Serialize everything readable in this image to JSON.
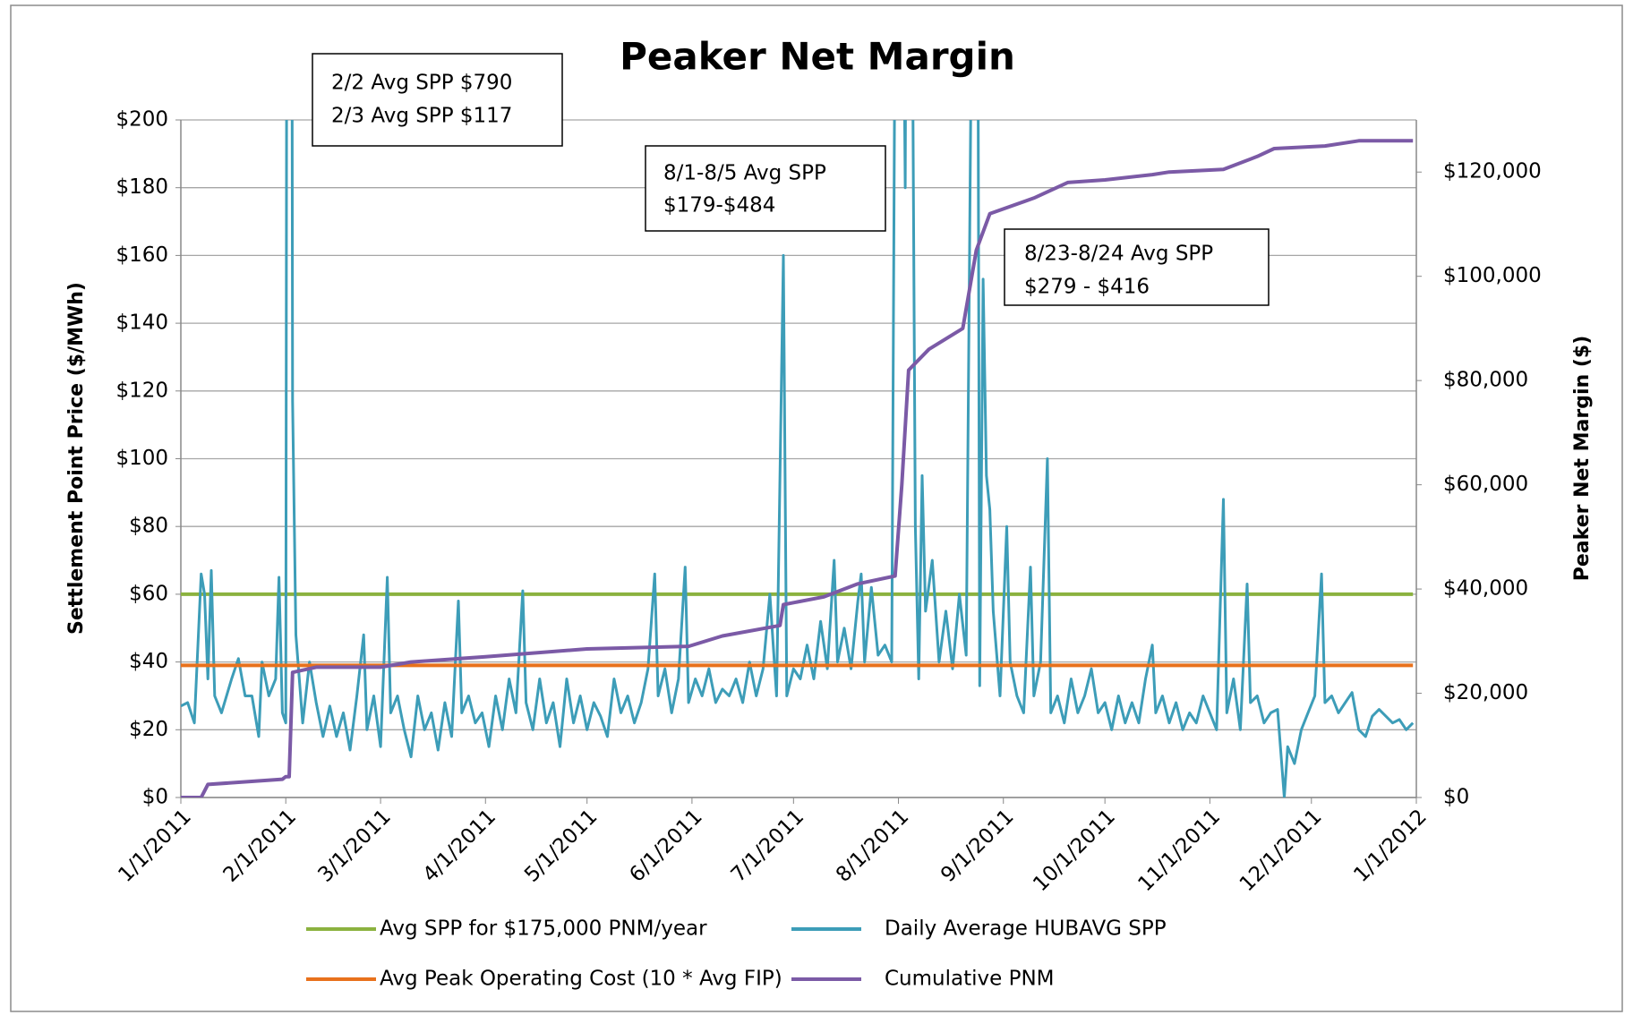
{
  "chart_data": {
    "type": "line",
    "title": "Peaker Net Margin",
    "ylabel": "Settlement Point Price ($/MWh)",
    "y2label": "Peaker Net Margin  ($)",
    "xlim": [
      "1/1/2011",
      "1/1/2012"
    ],
    "xticks": [
      "1/1/2011",
      "2/1/2011",
      "3/1/2011",
      "4/1/2011",
      "5/1/2011",
      "6/1/2011",
      "7/1/2011",
      "8/1/2011",
      "9/1/2011",
      "10/1/2011",
      "11/1/2011",
      "12/1/2011",
      "1/1/2012"
    ],
    "ylim": [
      0,
      200
    ],
    "yticks": [
      {
        "value": 0,
        "label": "$0"
      },
      {
        "value": 20,
        "label": "$20"
      },
      {
        "value": 40,
        "label": "$40"
      },
      {
        "value": 60,
        "label": "$60"
      },
      {
        "value": 80,
        "label": "$80"
      },
      {
        "value": 100,
        "label": "$100"
      },
      {
        "value": 120,
        "label": "$120"
      },
      {
        "value": 140,
        "label": "$140"
      },
      {
        "value": 160,
        "label": "$160"
      },
      {
        "value": 180,
        "label": "$180"
      },
      {
        "value": 200,
        "label": "$200"
      }
    ],
    "y2lim": [
      0,
      130000
    ],
    "y2ticks": [
      {
        "value": 0,
        "label": "$0"
      },
      {
        "value": 20000,
        "label": "$20,000"
      },
      {
        "value": 40000,
        "label": "$40,000"
      },
      {
        "value": 60000,
        "label": "$60,000"
      },
      {
        "value": 80000,
        "label": "$80,000"
      },
      {
        "value": 100000,
        "label": "$100,000"
      },
      {
        "value": 120000,
        "label": "$120,000"
      }
    ],
    "grid": true,
    "legend": "bottom",
    "annotations": [
      {
        "lines": [
          "2/2 Avg SPP $790",
          "2/3 Avg SPP $117"
        ]
      },
      {
        "lines": [
          "8/1-8/5 Avg SPP",
          "$179-$484"
        ]
      },
      {
        "lines": [
          "8/23-8/24 Avg SPP",
          "$279 - $416"
        ]
      }
    ],
    "series": [
      {
        "name": "Avg SPP for $175,000 PNM/year",
        "color": "#8bb23f",
        "x": [
          "1/1/2011",
          "12/31/2011"
        ],
        "values": [
          60,
          60
        ]
      },
      {
        "name": "Daily Average HUBAVG  SPP",
        "color": "#3d9db8",
        "x": [
          "1/1/2011",
          "1/3/2011",
          "1/5/2011",
          "1/7/2011",
          "1/8/2011",
          "1/9/2011",
          "1/10/2011",
          "1/11/2011",
          "1/13/2011",
          "1/16/2011",
          "1/18/2011",
          "1/20/2011",
          "1/22/2011",
          "1/24/2011",
          "1/25/2011",
          "1/27/2011",
          "1/29/2011",
          "1/30/2011",
          "1/31/2011",
          "2/1/2011",
          "2/2/2011",
          "2/3/2011",
          "2/4/2011",
          "2/6/2011",
          "2/8/2011",
          "2/10/2011",
          "2/12/2011",
          "2/14/2011",
          "2/16/2011",
          "2/18/2011",
          "2/20/2011",
          "2/22/2011",
          "2/24/2011",
          "2/25/2011",
          "2/27/2011",
          "3/1/2011",
          "3/3/2011",
          "3/4/2011",
          "3/6/2011",
          "3/8/2011",
          "3/10/2011",
          "3/12/2011",
          "3/14/2011",
          "3/16/2011",
          "3/18/2011",
          "3/20/2011",
          "3/22/2011",
          "3/24/2011",
          "3/25/2011",
          "3/27/2011",
          "3/29/2011",
          "3/31/2011",
          "4/2/2011",
          "4/4/2011",
          "4/6/2011",
          "4/8/2011",
          "4/10/2011",
          "4/12/2011",
          "4/13/2011",
          "4/15/2011",
          "4/17/2011",
          "4/19/2011",
          "4/21/2011",
          "4/23/2011",
          "4/25/2011",
          "4/27/2011",
          "4/29/2011",
          "5/1/2011",
          "5/3/2011",
          "5/5/2011",
          "5/7/2011",
          "5/9/2011",
          "5/11/2011",
          "5/13/2011",
          "5/15/2011",
          "5/17/2011",
          "5/19/2011",
          "5/21/2011",
          "5/22/2011",
          "5/24/2011",
          "5/26/2011",
          "5/28/2011",
          "5/30/2011",
          "5/31/2011",
          "6/2/2011",
          "6/4/2011",
          "6/6/2011",
          "6/8/2011",
          "6/10/2011",
          "6/12/2011",
          "6/14/2011",
          "6/16/2011",
          "6/18/2011",
          "6/20/2011",
          "6/22/2011",
          "6/24/2011",
          "6/26/2011",
          "6/28/2011",
          "6/29/2011",
          "7/1/2011",
          "7/3/2011",
          "7/5/2011",
          "7/7/2011",
          "7/9/2011",
          "7/11/2011",
          "7/13/2011",
          "7/14/2011",
          "7/16/2011",
          "7/18/2011",
          "7/20/2011",
          "7/21/2011",
          "7/22/2011",
          "7/24/2011",
          "7/26/2011",
          "7/28/2011",
          "7/30/2011",
          "8/1/2011",
          "8/2/2011",
          "8/3/2011",
          "8/4/2011",
          "8/5/2011",
          "8/6/2011",
          "8/7/2011",
          "8/8/2011",
          "8/9/2011",
          "8/11/2011",
          "8/13/2011",
          "8/15/2011",
          "8/17/2011",
          "8/19/2011",
          "8/21/2011",
          "8/23/2011",
          "8/24/2011",
          "8/25/2011",
          "8/26/2011",
          "8/27/2011",
          "8/28/2011",
          "8/29/2011",
          "8/31/2011",
          "9/2/2011",
          "9/3/2011",
          "9/5/2011",
          "9/7/2011",
          "9/9/2011",
          "9/10/2011",
          "9/12/2011",
          "9/14/2011",
          "9/15/2011",
          "9/17/2011",
          "9/19/2011",
          "9/21/2011",
          "9/23/2011",
          "9/25/2011",
          "9/27/2011",
          "9/29/2011",
          "10/1/2011",
          "10/3/2011",
          "10/5/2011",
          "10/7/2011",
          "10/9/2011",
          "10/11/2011",
          "10/13/2011",
          "10/15/2011",
          "10/16/2011",
          "10/18/2011",
          "10/20/2011",
          "10/22/2011",
          "10/24/2011",
          "10/26/2011",
          "10/28/2011",
          "10/30/2011",
          "11/1/2011",
          "11/3/2011",
          "11/5/2011",
          "11/6/2011",
          "11/8/2011",
          "11/10/2011",
          "11/12/2011",
          "11/13/2011",
          "11/15/2011",
          "11/17/2011",
          "11/19/2011",
          "11/21/2011",
          "11/23/2011",
          "11/24/2011",
          "11/26/2011",
          "11/28/2011",
          "11/30/2011",
          "12/2/2011",
          "12/4/2011",
          "12/5/2011",
          "12/7/2011",
          "12/9/2011",
          "12/11/2011",
          "12/13/2011",
          "12/15/2011",
          "12/17/2011",
          "12/19/2011",
          "12/21/2011",
          "12/23/2011",
          "12/25/2011",
          "12/27/2011",
          "12/29/2011",
          "12/31/2011"
        ],
        "values": [
          27,
          28,
          22,
          66,
          60,
          35,
          67,
          30,
          25,
          35,
          41,
          30,
          30,
          18,
          40,
          30,
          35,
          65,
          25,
          22,
          790,
          117,
          48,
          22,
          40,
          28,
          18,
          27,
          18,
          25,
          14,
          30,
          48,
          20,
          30,
          15,
          65,
          25,
          30,
          20,
          12,
          30,
          20,
          25,
          14,
          28,
          18,
          58,
          25,
          30,
          22,
          25,
          15,
          30,
          20,
          35,
          25,
          61,
          28,
          20,
          35,
          22,
          28,
          15,
          35,
          22,
          30,
          20,
          28,
          24,
          18,
          35,
          25,
          30,
          22,
          28,
          38,
          66,
          30,
          38,
          25,
          35,
          68,
          28,
          35,
          30,
          38,
          28,
          32,
          30,
          35,
          28,
          40,
          30,
          38,
          60,
          30,
          160,
          30,
          38,
          35,
          45,
          35,
          52,
          38,
          70,
          40,
          50,
          38,
          58,
          66,
          40,
          62,
          42,
          45,
          40,
          430,
          300,
          180,
          484,
          250,
          80,
          35,
          95,
          55,
          70,
          40,
          55,
          38,
          60,
          42,
          279,
          416,
          33,
          153,
          95,
          85,
          55,
          30,
          80,
          40,
          30,
          25,
          68,
          30,
          40,
          100,
          25,
          30,
          22,
          35,
          25,
          30,
          38,
          25,
          28,
          20,
          30,
          22,
          28,
          22,
          35,
          45,
          25,
          30,
          22,
          28,
          20,
          25,
          22,
          30,
          25,
          20,
          88,
          25,
          35,
          20,
          63,
          28,
          30,
          22,
          25,
          26,
          0,
          15,
          10,
          20,
          25,
          30,
          66,
          28,
          30,
          25,
          28,
          31,
          20,
          18,
          24,
          26,
          24,
          22,
          23,
          20,
          22
        ]
      },
      {
        "name": "Avg Peak Operating Cost (10 * Avg FIP)",
        "color": "#e8711c",
        "x": [
          "1/1/2011",
          "12/31/2011"
        ],
        "values": [
          39,
          39
        ]
      },
      {
        "name": "Cumulative PNM",
        "color": "#7b5aa6",
        "axis": "y2",
        "x": [
          "1/1/2011",
          "1/7/2011",
          "1/9/2011",
          "1/31/2011",
          "2/1/2011",
          "2/2/2011",
          "2/3/2011",
          "2/10/2011",
          "3/1/2011",
          "3/10/2011",
          "4/1/2011",
          "5/1/2011",
          "5/31/2011",
          "6/10/2011",
          "6/27/2011",
          "6/28/2011",
          "7/10/2011",
          "7/20/2011",
          "7/31/2011",
          "8/2/2011",
          "8/4/2011",
          "8/10/2011",
          "8/20/2011",
          "8/24/2011",
          "8/28/2011",
          "9/10/2011",
          "9/20/2011",
          "10/1/2011",
          "10/15/2011",
          "10/20/2011",
          "11/5/2011",
          "11/15/2011",
          "11/20/2011",
          "12/5/2011",
          "12/15/2011",
          "12/31/2011"
        ],
        "values": [
          0,
          0,
          2500,
          3500,
          4000,
          4000,
          24000,
          25000,
          25000,
          26000,
          27000,
          28500,
          29000,
          31000,
          33000,
          37000,
          38500,
          41000,
          42500,
          60000,
          82000,
          86000,
          90000,
          105000,
          112000,
          115000,
          118000,
          118500,
          119500,
          120000,
          120500,
          123000,
          124500,
          125000,
          126000,
          126000
        ]
      }
    ]
  }
}
